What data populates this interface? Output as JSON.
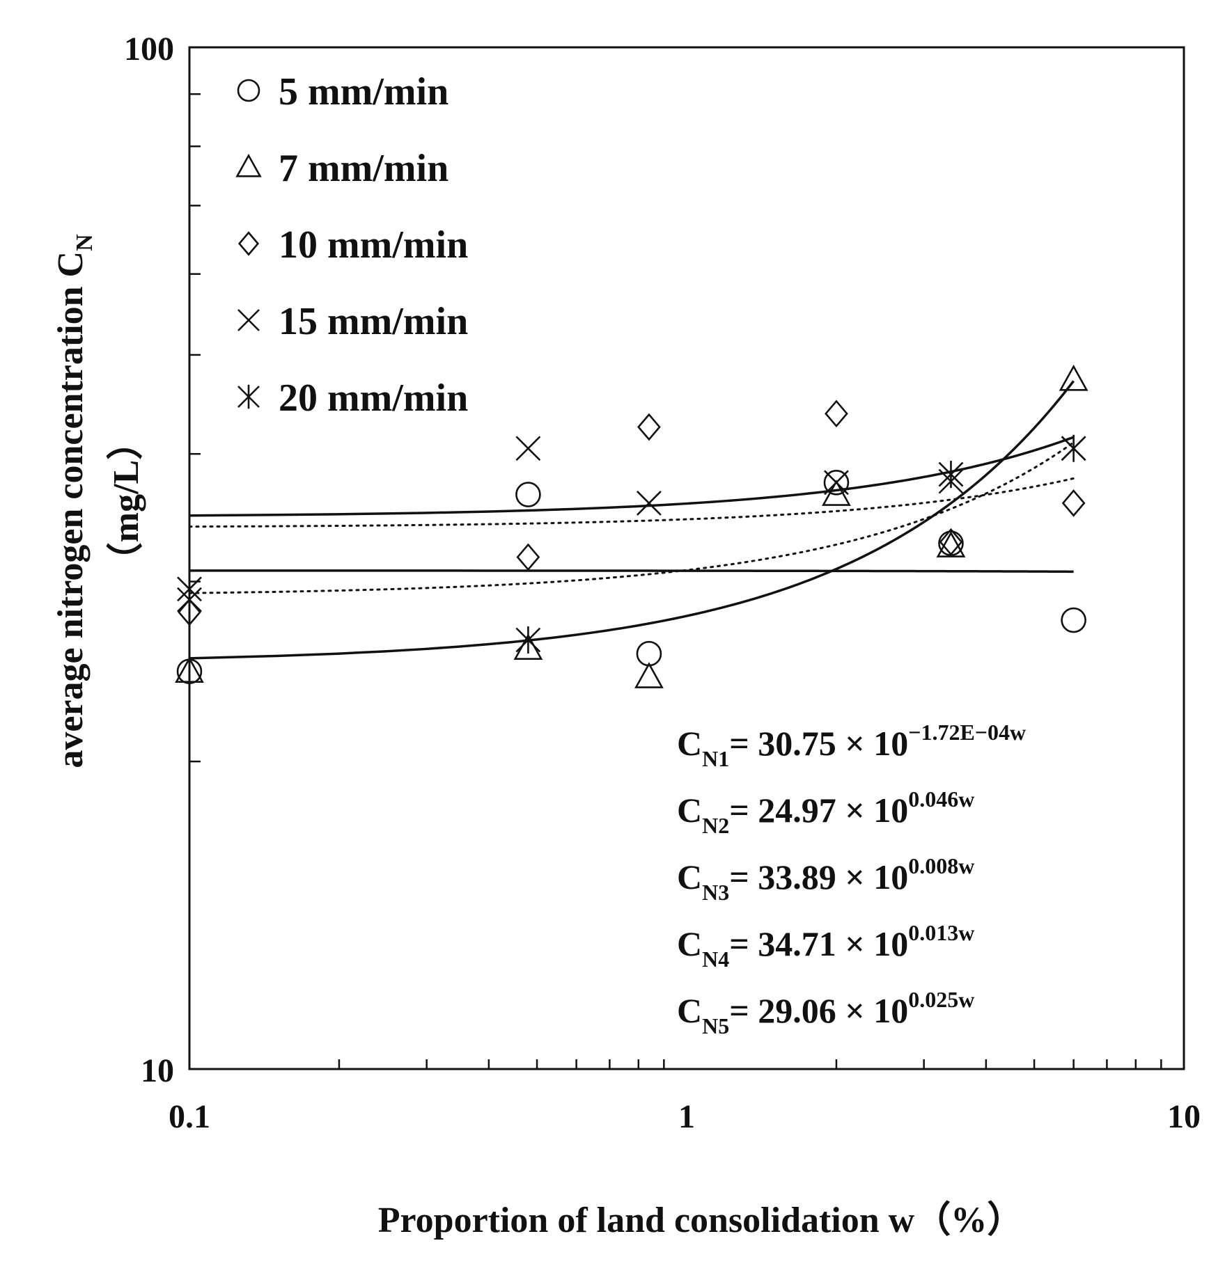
{
  "chart_data": {
    "type": "scatter",
    "x_scale": "log",
    "y_scale": "log",
    "xlim": [
      0.1,
      10
    ],
    "ylim": [
      10,
      100
    ],
    "x_ticks": [
      "0.1",
      "1",
      "10"
    ],
    "y_ticks": [
      "10",
      "100"
    ],
    "xlabel": "Proportion of land consolidation  w（%）",
    "ylabel_main": "average nitrogen concentration  C",
    "ylabel_sub": "N",
    "ylabel_unit": "（mg/L）",
    "legend_position": "top-left",
    "series": [
      {
        "name": "5 mm/min",
        "marker": "circle",
        "x": [
          0.1,
          0.48,
          0.84,
          2.0,
          3.4,
          6.0
        ],
        "y": [
          24.5,
          36.5,
          25.5,
          37.5,
          32.7,
          27.5
        ]
      },
      {
        "name": "7 mm/min",
        "marker": "triangle",
        "x": [
          0.1,
          0.48,
          0.84,
          2.0,
          3.4,
          6.0
        ],
        "y": [
          24.5,
          25.8,
          24.2,
          36.5,
          32.5,
          47.3
        ]
      },
      {
        "name": "10 mm/min",
        "marker": "diamond",
        "x": [
          0.1,
          0.48,
          0.84,
          2.0,
          3.4,
          6.0
        ],
        "y": [
          28.0,
          31.7,
          42.5,
          43.8,
          32.8,
          35.8
        ]
      },
      {
        "name": "15 mm/min",
        "marker": "x",
        "x": [
          0.1,
          0.48,
          0.84,
          2.0,
          3.4,
          6.0
        ],
        "y": [
          29.5,
          40.5,
          35.8,
          37.5,
          37.6,
          40.5
        ]
      },
      {
        "name": "20 mm/min",
        "marker": "asterisk",
        "x": [
          0.1,
          0.48,
          3.4,
          6.0
        ],
        "y": [
          28.8,
          26.3,
          38.2,
          40.5
        ]
      }
    ],
    "fits": [
      {
        "name": "CN1",
        "a": 30.75,
        "b": -0.000172,
        "style": "solid"
      },
      {
        "name": "CN2",
        "a": 24.97,
        "b": 0.046,
        "style": "solid"
      },
      {
        "name": "CN3",
        "a": 33.89,
        "b": 0.008,
        "style": "dotted"
      },
      {
        "name": "CN4",
        "a": 34.71,
        "b": 0.013,
        "style": "solid"
      },
      {
        "name": "CN5",
        "a": 29.06,
        "b": 0.025,
        "style": "dotted"
      }
    ],
    "equations": [
      {
        "label": "C",
        "sub": "N1",
        "body": "= 30.75 × 10",
        "exp": "−1.72E−04w"
      },
      {
        "label": "C",
        "sub": "N2",
        "body": "= 24.97 × 10",
        "exp": "0.046w"
      },
      {
        "label": "C",
        "sub": "N3",
        "body": "= 33.89 × 10",
        "exp": "0.008w"
      },
      {
        "label": "C",
        "sub": "N4",
        "body": "= 34.71 × 10",
        "exp": "0.013w"
      },
      {
        "label": "C",
        "sub": "N5",
        "body": "= 29.06 × 10",
        "exp": "0.025w"
      }
    ]
  }
}
